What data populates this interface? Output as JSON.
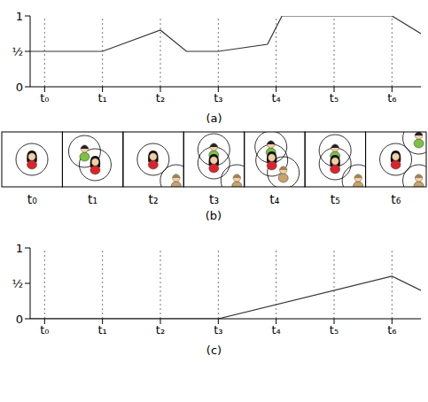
{
  "chart_data": [
    {
      "type": "line",
      "title": "(a)",
      "x": [
        -0.25,
        1,
        2,
        2.45,
        3,
        3.85,
        4.1,
        6,
        6.5
      ],
      "values": [
        0.5,
        0.5,
        0.8,
        0.5,
        0.5,
        0.6,
        1,
        1,
        0.75
      ],
      "color": "#333333",
      "xlim": [
        -0.25,
        6.5
      ],
      "xticks": [
        {
          "value": 0,
          "label": "t₀"
        },
        {
          "value": 1,
          "label": "t₁"
        },
        {
          "value": 2,
          "label": "t₂"
        },
        {
          "value": 3,
          "label": "t₃"
        },
        {
          "value": 4,
          "label": "t₄"
        },
        {
          "value": 5,
          "label": "t₅"
        },
        {
          "value": 6,
          "label": "t₆"
        }
      ],
      "ylim": [
        0,
        1
      ],
      "yticks": [
        0,
        {
          "value": 0.5,
          "label": "½"
        },
        1
      ],
      "grid": true
    },
    {
      "type": "line",
      "title": "(c)",
      "x": [
        -0.25,
        3,
        6,
        6.5
      ],
      "values": [
        0,
        0,
        0.6,
        0.4
      ],
      "color": "#333333",
      "xlim": [
        -0.25,
        6.5
      ],
      "xticks": [
        {
          "value": 0,
          "label": "t₀"
        },
        {
          "value": 1,
          "label": "t₁"
        },
        {
          "value": 2,
          "label": "t₂"
        },
        {
          "value": 3,
          "label": "t₃"
        },
        {
          "value": 4,
          "label": "t₄"
        },
        {
          "value": 5,
          "label": "t₅"
        },
        {
          "value": 6,
          "label": "t₆"
        }
      ],
      "ylim": [
        0,
        1
      ],
      "yticks": [
        0,
        {
          "value": 0.5,
          "label": "½"
        },
        1
      ],
      "grid": true
    }
  ],
  "diagram": {
    "title": "(b)",
    "panels": [
      "t₀",
      "t₁",
      "t₂",
      "t₃",
      "t₄",
      "t₅",
      "t₆"
    ]
  }
}
